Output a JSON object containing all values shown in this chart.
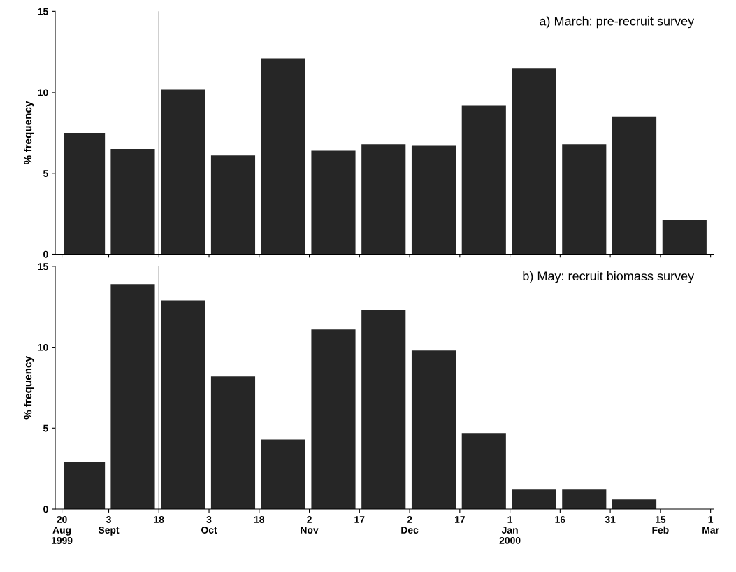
{
  "chart_data": [
    {
      "type": "histogram",
      "title": "a) March: pre-recruit survey",
      "ylabel": "% frequency",
      "bins": [
        "1999-08-20",
        "1999-09-03",
        "1999-09-18",
        "1999-10-03",
        "1999-10-18",
        "1999-11-02",
        "1999-11-17",
        "1999-12-02",
        "1999-12-17",
        "2000-01-01",
        "2000-01-16",
        "2000-01-31",
        "2000-02-15",
        "2000-03-01"
      ],
      "values": [
        7.5,
        6.5,
        10.2,
        6.1,
        12.1,
        6.4,
        6.8,
        6.7,
        9.2,
        11.5,
        6.8,
        8.5,
        2.1
      ],
      "color": "#262626",
      "xlim": [
        "1999-08-18",
        "2000-03-02"
      ],
      "ylim": [
        0,
        15
      ],
      "yticks": [
        0,
        5,
        10,
        15
      ],
      "xticks": [
        {
          "value": "1999-08-20",
          "label": null
        },
        {
          "value": "1999-09-03",
          "label": null
        },
        {
          "value": "1999-09-18",
          "label": null
        },
        {
          "value": "1999-10-03",
          "label": null
        },
        {
          "value": "1999-10-18",
          "label": null
        },
        {
          "value": "1999-11-02",
          "label": null
        },
        {
          "value": "1999-11-17",
          "label": null
        },
        {
          "value": "1999-12-02",
          "label": null
        },
        {
          "value": "1999-12-17",
          "label": null
        },
        {
          "value": "2000-01-01",
          "label": null
        },
        {
          "value": "2000-01-16",
          "label": null
        },
        {
          "value": "2000-01-31",
          "label": null
        },
        {
          "value": "2000-02-15",
          "label": null
        },
        {
          "value": "2000-03-01",
          "label": null
        }
      ],
      "tick_labels": "y",
      "grid": false,
      "ref_lines": [
        {
          "axis": "x",
          "value": "1999-09-18",
          "color": "#555555"
        }
      ]
    },
    {
      "type": "histogram",
      "title": "b) May: recruit biomass survey",
      "ylabel": "% frequency",
      "bins": [
        "1999-08-20",
        "1999-09-03",
        "1999-09-18",
        "1999-10-03",
        "1999-10-18",
        "1999-11-02",
        "1999-11-17",
        "1999-12-02",
        "1999-12-17",
        "2000-01-01",
        "2000-01-16",
        "2000-01-31",
        "2000-02-15"
      ],
      "values": [
        2.9,
        13.9,
        12.9,
        8.2,
        4.3,
        11.1,
        12.3,
        9.8,
        4.7,
        1.2,
        1.2,
        0.6
      ],
      "color": "#262626",
      "xlim": [
        "1999-08-18",
        "2000-03-02"
      ],
      "ylim": [
        0,
        15
      ],
      "yticks": [
        0,
        5,
        10,
        15
      ],
      "xticks": [
        {
          "value": "1999-08-20",
          "label": "20\nAug\n1999"
        },
        {
          "value": "1999-09-03",
          "label": "3\nSept"
        },
        {
          "value": "1999-09-18",
          "label": "18"
        },
        {
          "value": "1999-10-03",
          "label": "3\nOct"
        },
        {
          "value": "1999-10-18",
          "label": "18"
        },
        {
          "value": "1999-11-02",
          "label": "2\nNov"
        },
        {
          "value": "1999-11-17",
          "label": "17"
        },
        {
          "value": "1999-12-02",
          "label": "2\nDec"
        },
        {
          "value": "1999-12-17",
          "label": "17"
        },
        {
          "value": "2000-01-01",
          "label": "1\nJan\n2000"
        },
        {
          "value": "2000-01-16",
          "label": "16"
        },
        {
          "value": "2000-01-31",
          "label": "31"
        },
        {
          "value": "2000-02-15",
          "label": "15\nFeb"
        },
        {
          "value": "2000-03-01",
          "label": "1\nMar"
        }
      ],
      "grid": false,
      "ref_lines": [
        {
          "axis": "x",
          "value": "1999-09-18",
          "color": "#555555"
        }
      ]
    }
  ]
}
